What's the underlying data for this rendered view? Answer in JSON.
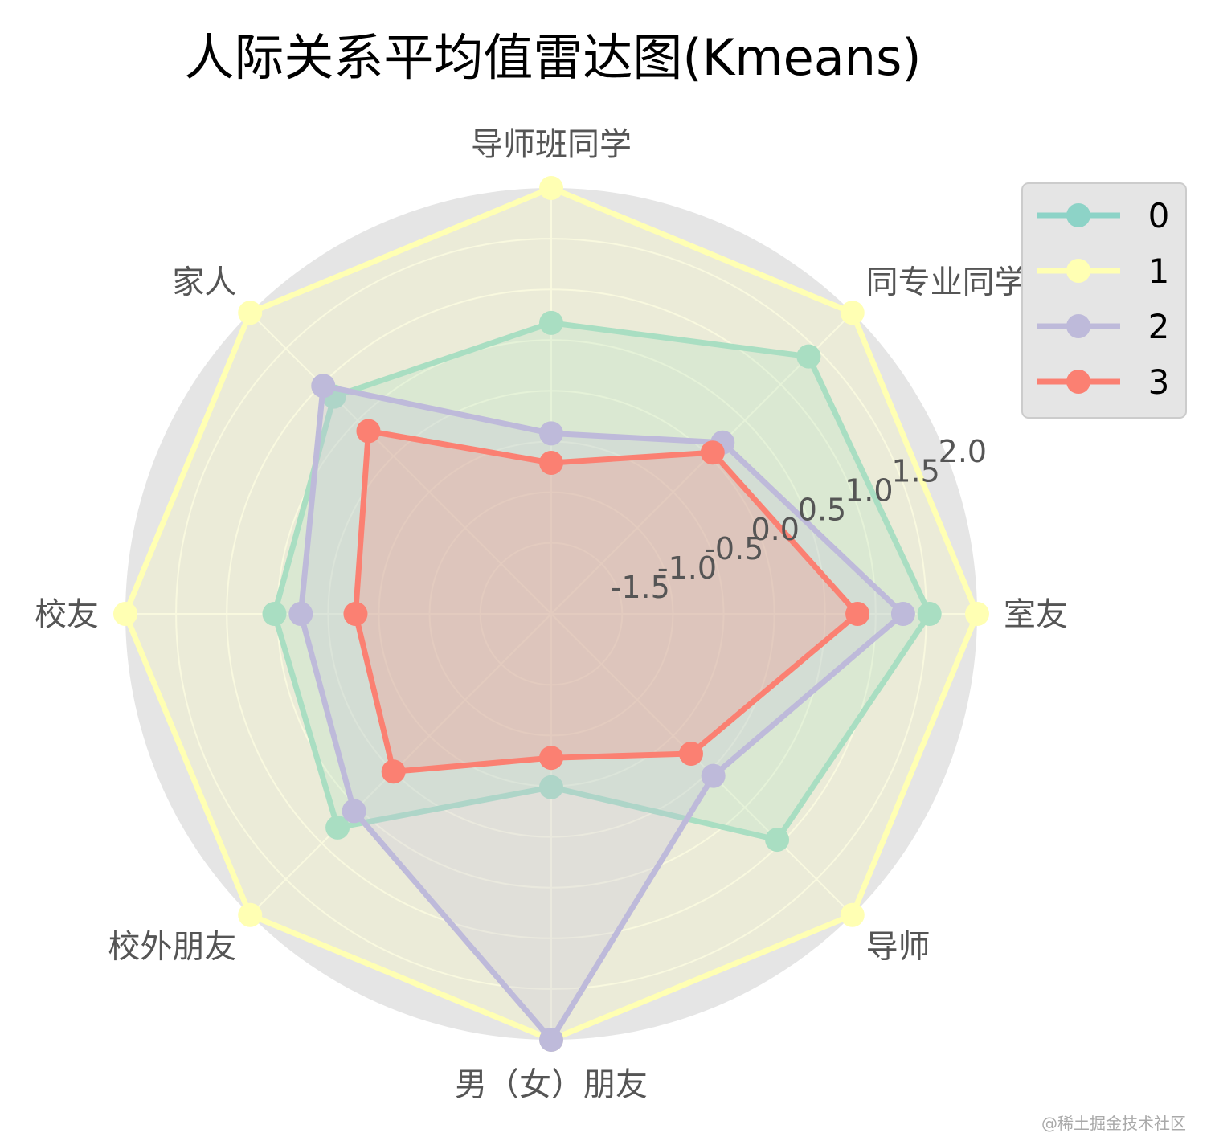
{
  "chart_data": {
    "type": "radar",
    "title": "人际关系平均值雷达图(Kmeans)",
    "categories": [
      "室友",
      "同专业同学",
      "导师班同学",
      "家人",
      "校友",
      "校外朋友",
      "男（女）朋友",
      "导师"
    ],
    "r_ticks": [
      "-1.5",
      "-1.0",
      "-0.5",
      "0.0",
      "0.5",
      "1.0",
      "1.5",
      "2.0"
    ],
    "rlim": [
      -2.2,
      2.0
    ],
    "grid": true,
    "legend_position": "upper-right",
    "series": [
      {
        "name": "0",
        "color": "#8dd3c7",
        "values": [
          1.53,
          1.39,
          0.67,
          0.83,
          0.53,
          0.78,
          -0.49,
          0.95
        ]
      },
      {
        "name": "1",
        "color": "#ffffb3",
        "values": [
          2.0,
          2.0,
          2.0,
          2.0,
          2.0,
          2.0,
          2.0,
          2.0
        ]
      },
      {
        "name": "2",
        "color": "#bebada",
        "values": [
          1.27,
          0.19,
          -0.42,
          0.98,
          0.27,
          0.55,
          2.0,
          0.06
        ]
      },
      {
        "name": "3",
        "color": "#fb8072",
        "values": [
          0.82,
          0.05,
          -0.71,
          0.35,
          -0.27,
          -0.0,
          -0.78,
          -0.25
        ]
      }
    ]
  },
  "watermark": "@稀土掘金技术社区"
}
